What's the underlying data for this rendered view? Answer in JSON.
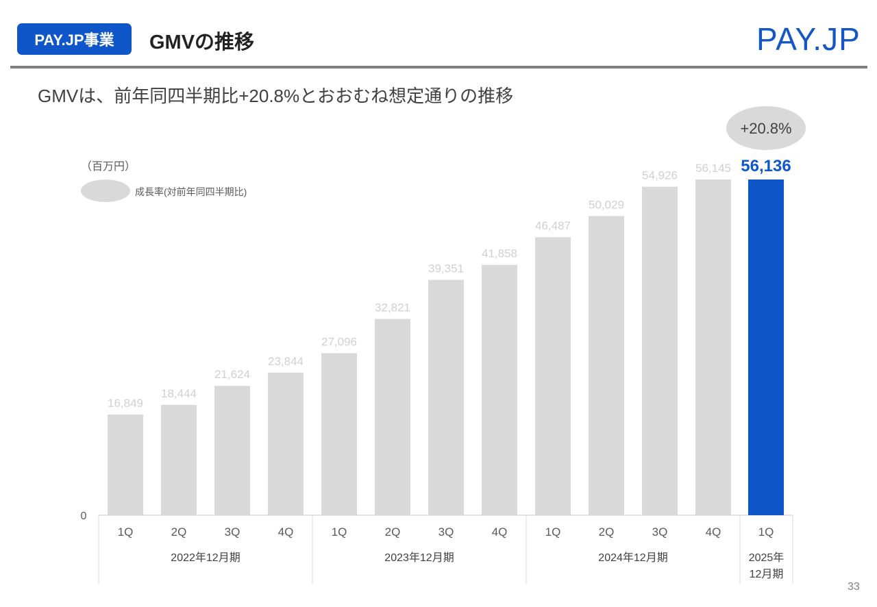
{
  "header": {
    "badge": "PAY.JP事業",
    "title": "GMVの推移",
    "logo": "PAY.JP"
  },
  "subtitle": "GMVは、前年同四半期比+20.8%とおおむね想定通りの推移",
  "unit": "（百万円）",
  "legend": {
    "label": "成長率(対前年同四半期比)"
  },
  "page_number": "33",
  "colors": {
    "bar": "#d9d9d9",
    "highlight": "#0f56c8",
    "label": "#d0d0d0"
  },
  "chart_data": {
    "type": "bar",
    "title": "GMVの推移",
    "ylabel": "（百万円）",
    "ylim": [
      0,
      56136
    ],
    "y_ticks": [
      "0"
    ],
    "categories": [
      "1Q",
      "2Q",
      "3Q",
      "4Q",
      "1Q",
      "2Q",
      "3Q",
      "4Q",
      "1Q",
      "2Q",
      "3Q",
      "4Q",
      "1Q"
    ],
    "groups": [
      {
        "label": "2022年12月期",
        "count": 4
      },
      {
        "label": "2023年12月期",
        "count": 4
      },
      {
        "label": "2024年12月期",
        "count": 4
      },
      {
        "label": "2025年\n12月期",
        "count": 1
      }
    ],
    "values": [
      16849,
      18444,
      21624,
      23844,
      27096,
      32821,
      39351,
      41858,
      46487,
      50029,
      54926,
      56145,
      56136
    ],
    "value_labels": [
      "16,849",
      "18,444",
      "21,624",
      "23,844",
      "27,096",
      "32,821",
      "39,351",
      "41,858",
      "46,487",
      "50,029",
      "54,926",
      "56,145",
      "56,136"
    ],
    "highlight_index": 12,
    "growth_annotation": "+20.8%",
    "grid": false
  }
}
